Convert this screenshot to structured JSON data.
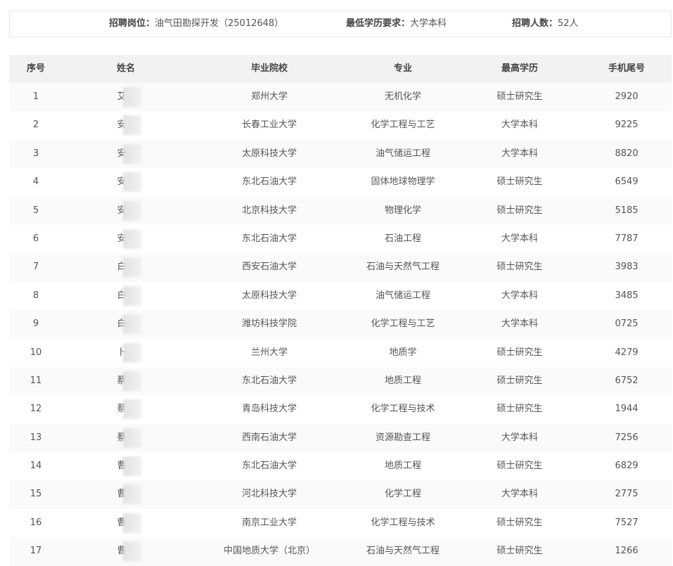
{
  "header": {
    "fields": [
      {
        "label": "招聘岗位：",
        "value": "油气田勘探开发（25012648）"
      },
      {
        "label": "最低学历要求：",
        "value": "大学本科"
      },
      {
        "label": "招聘人数：",
        "value": "52人"
      }
    ]
  },
  "table": {
    "columns": [
      "序号",
      "姓名",
      "毕业院校",
      "专业",
      "最高学历",
      "手机尾号"
    ],
    "rows": [
      [
        "1",
        "艾",
        "郑州大学",
        "无机化学",
        "硕士研究生",
        "2920"
      ],
      [
        "2",
        "安",
        "长春工业大学",
        "化学工程与工艺",
        "大学本科",
        "9225"
      ],
      [
        "3",
        "安",
        "太原科技大学",
        "油气储运工程",
        "大学本科",
        "8820"
      ],
      [
        "4",
        "安",
        "东北石油大学",
        "固体地球物理学",
        "硕士研究生",
        "6549"
      ],
      [
        "5",
        "安",
        "北京科技大学",
        "物理化学",
        "硕士研究生",
        "5185"
      ],
      [
        "6",
        "安",
        "东北石油大学",
        "石油工程",
        "大学本科",
        "7787"
      ],
      [
        "7",
        "白",
        "西安石油大学",
        "石油与天然气工程",
        "硕士研究生",
        "3983"
      ],
      [
        "8",
        "白",
        "太原科技大学",
        "油气储运工程",
        "大学本科",
        "3485"
      ],
      [
        "9",
        "白",
        "潍坊科技学院",
        "化学工程与工艺",
        "大学本科",
        "0725"
      ],
      [
        "10",
        "卜",
        "兰州大学",
        "地质学",
        "硕士研究生",
        "4279"
      ],
      [
        "11",
        "蔡",
        "东北石油大学",
        "地质工程",
        "硕士研究生",
        "6752"
      ],
      [
        "12",
        "蔡",
        "青岛科技大学",
        "化学工程与技术",
        "硕士研究生",
        "1944"
      ],
      [
        "13",
        "蔡",
        "西南石油大学",
        "资源勘查工程",
        "大学本科",
        "7256"
      ],
      [
        "14",
        "曹",
        "东北石油大学",
        "地质工程",
        "硕士研究生",
        "6829"
      ],
      [
        "15",
        "曹",
        "河北科技大学",
        "化学工程",
        "大学本科",
        "2775"
      ],
      [
        "16",
        "曹",
        "南京工业大学",
        "化学工程与技术",
        "硕士研究生",
        "7527"
      ],
      [
        "17",
        "曹",
        "中国地质大学（北京）",
        "石油与天然气工程",
        "硕士研究生",
        "1266"
      ]
    ]
  }
}
